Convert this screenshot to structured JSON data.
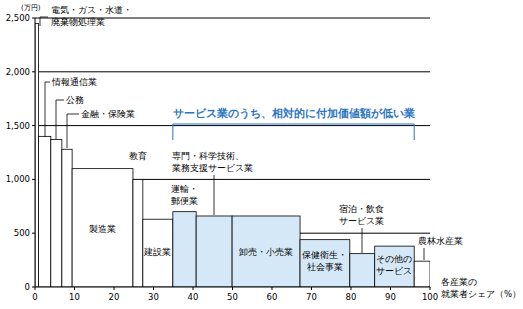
{
  "chart_data": {
    "type": "bar",
    "y_label": "(万円)",
    "x_label": "各産業の\n就業者シェア（%）",
    "annotation": "サービス業のうち、相対的に付加価値額が低い業",
    "categories": [
      "電気・ガス・水道・\n廃棄物処理業",
      "情報通信業",
      "公務",
      "金融・保険業",
      "製造業",
      "教育",
      "建設業",
      "運輸・\n郵便業",
      "専門・科学技術、\n業務支援サービス業",
      "卸売・小売業",
      "保健衛生・\n社会事業",
      "宿泊・飲食\nサービス業",
      "その他の\nサービス",
      "農林水産業"
    ],
    "values": [
      2450,
      1400,
      1370,
      1280,
      1100,
      1000,
      630,
      700,
      660,
      660,
      440,
      310,
      380,
      240
    ],
    "widths": [
      0.9,
      3.1,
      2.8,
      2.6,
      15.4,
      2.5,
      7.6,
      5.9,
      9.1,
      17.2,
      12.6,
      6.3,
      10.0,
      4.0
    ],
    "colors": [
      "#ffffff",
      "#ffffff",
      "#ffffff",
      "#ffffff",
      "#ffffff",
      "#ffffff",
      "#ffffff",
      "#d4e8f7",
      "#d4e8f7",
      "#d4e8f7",
      "#d4e8f7",
      "#d4e8f7",
      "#d4e8f7",
      "#ffffff"
    ],
    "xlim": [
      0,
      100
    ],
    "xticks": [
      0,
      10,
      20,
      30,
      40,
      50,
      60,
      70,
      80,
      90,
      100
    ],
    "ylim": [
      0,
      2500
    ],
    "yticks": [
      0,
      500,
      {
        "value": 1000,
        "label": "1,000"
      },
      {
        "value": 1500,
        "label": "1,500"
      },
      {
        "value": 2000,
        "label": "2,000"
      },
      {
        "value": 2500,
        "label": "2,500"
      }
    ],
    "grid": true
  }
}
